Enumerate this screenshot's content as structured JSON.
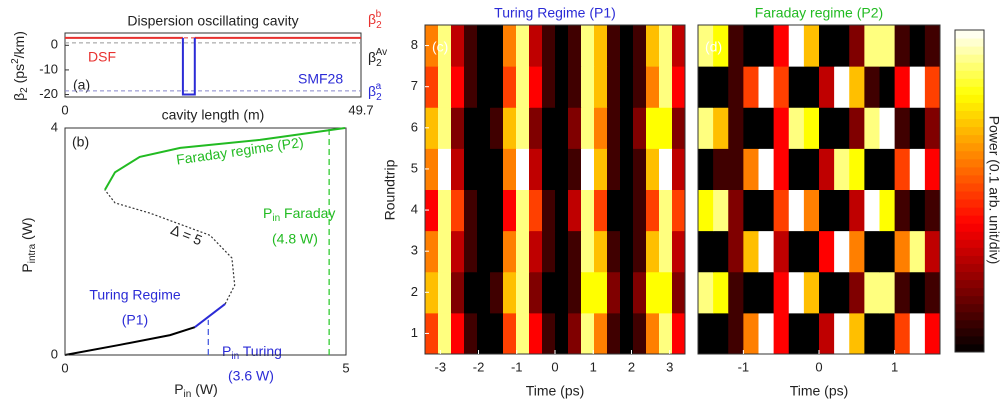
{
  "chart_data": [
    {
      "type": "line",
      "panel": "(a)",
      "title": "Dispersion oscillating cavity",
      "xlabel": "cavity length (m)",
      "ylabel": [
        "β",
        "2",
        " (ps",
        "2",
        "/km)"
      ],
      "xlim": [
        0,
        49.7
      ],
      "ylim": [
        -21,
        5
      ],
      "xticks": [
        0,
        49.7
      ],
      "yticks": [
        0,
        -10,
        -20
      ],
      "series": [
        {
          "name": "DSF",
          "color": "#e8312f",
          "x": [
            0,
            19.8,
            19.8,
            21.8,
            49.7
          ],
          "values": [
            3,
            3,
            null,
            3,
            3
          ]
        },
        {
          "name": "SMF28",
          "color": "#2b2bd6",
          "x": [
            19.8,
            19.8,
            21.8,
            21.8
          ],
          "values": [
            3,
            -20,
            -20,
            3
          ]
        }
      ],
      "hlines": [
        {
          "label": [
            "β",
            "2",
            "b"
          ],
          "value": 3,
          "color": "#e8312f"
        },
        {
          "label": [
            "β",
            "2",
            "Av"
          ],
          "value": 1,
          "color": "#999999"
        },
        {
          "label": [
            "β",
            "2",
            "a"
          ],
          "value": -18.5,
          "color": "#8888cc"
        }
      ]
    },
    {
      "type": "line",
      "panel": "(b)",
      "xlabel": [
        "P",
        "in",
        " (W)"
      ],
      "ylabel": [
        "P",
        "intra",
        " (W)"
      ],
      "xlim": [
        0,
        5
      ],
      "ylim": [
        0,
        4
      ],
      "xticks": [
        0,
        5
      ],
      "yticks": [
        0,
        4
      ],
      "series": [
        {
          "color": "#000000",
          "x": [
            0,
            0.98,
            1.87,
            2.31
          ],
          "values": [
            0,
            0.18,
            0.35,
            0.49
          ]
        },
        {
          "color": "#2b2bd6",
          "x": [
            2.31,
            2.85
          ],
          "values": [
            0.49,
            0.9
          ]
        },
        {
          "color": "#333333",
          "dash": true,
          "x": [
            2.85,
            3.02,
            2.97,
            2.58,
            1.51,
            0.89,
            0.71
          ],
          "values": [
            0.9,
            1.23,
            1.71,
            2.11,
            2.5,
            2.68,
            2.91
          ]
        },
        {
          "color": "#22bb22",
          "x": [
            0.71,
            0.89,
            1.33,
            2.05,
            3.47,
            4.98
          ],
          "values": [
            2.91,
            3.22,
            3.49,
            3.65,
            3.79,
            4.0
          ]
        }
      ],
      "vlines": [
        {
          "x": 2.55,
          "top": 0.62,
          "color": "#4a5ee0"
        },
        {
          "x": 4.7,
          "top": 4,
          "color": "#33cc33"
        }
      ],
      "annotations": [
        "Faraday regime (P2)",
        "Δ = 5",
        [
          "P",
          "in",
          " Faraday"
        ],
        "(4.8 W)",
        "Turing Regime",
        "(P1)",
        [
          "P",
          "in",
          " Turing"
        ],
        "(3.6 W)"
      ]
    },
    {
      "type": "heatmap",
      "panel": "(c)",
      "title": "Turing Regime (P1)",
      "xlabel": "Time (ps)",
      "ylabel": "Roundtrip",
      "xlim": [
        -3.4,
        3.4
      ],
      "ylim": [
        0.5,
        8.5
      ],
      "xticks": [
        -3,
        -2,
        -1,
        0,
        1,
        2,
        3
      ],
      "yticks": [
        1,
        2,
        3,
        4,
        5,
        6,
        7,
        8
      ],
      "zlim": [
        0,
        10
      ],
      "colormap": "hot",
      "values": [
        [
          5,
          9,
          4,
          1,
          0,
          0,
          5,
          9,
          4,
          1,
          0,
          2,
          9,
          6,
          1,
          0,
          1,
          6,
          9,
          4
        ],
        [
          7,
          9,
          2,
          0,
          0,
          1,
          7,
          9,
          2,
          0,
          0,
          1,
          8,
          8,
          2,
          0,
          2,
          8,
          8,
          2
        ],
        [
          6,
          9,
          3,
          1,
          0,
          0,
          6,
          9,
          3,
          1,
          0,
          1,
          9,
          7,
          1,
          0,
          1,
          7,
          9,
          3
        ],
        [
          4,
          9,
          5,
          1,
          0,
          0,
          4,
          9,
          5,
          1,
          0,
          3,
          9,
          5,
          0,
          0,
          1,
          5,
          9,
          5
        ],
        [
          6,
          10,
          3,
          0,
          0,
          0,
          6,
          10,
          3,
          0,
          0,
          1,
          10,
          7,
          1,
          0,
          1,
          7,
          10,
          3
        ],
        [
          7,
          9,
          2,
          0,
          0,
          1,
          7,
          9,
          2,
          0,
          0,
          2,
          9,
          6,
          1,
          0,
          2,
          8,
          8,
          2
        ],
        [
          5,
          9,
          4,
          1,
          0,
          0,
          5,
          9,
          4,
          1,
          0,
          1,
          9,
          7,
          1,
          0,
          1,
          6,
          9,
          4
        ],
        [
          6,
          9,
          3,
          1,
          0,
          0,
          6,
          9,
          3,
          1,
          0,
          1,
          9,
          7,
          1,
          0,
          1,
          7,
          9,
          3
        ]
      ]
    },
    {
      "type": "heatmap",
      "panel": "(d)",
      "title": "Faraday regime (P2)",
      "xlabel": "Time (ps)",
      "colorbar_label": "Power (0.1 arb. unit/div)",
      "xlim": [
        -1.6,
        1.6
      ],
      "ylim": [
        0.5,
        8.5
      ],
      "xticks": [
        -1,
        0,
        1
      ],
      "yticks": [
        1,
        2,
        3,
        4,
        5,
        6,
        7,
        8
      ],
      "zlim": [
        0,
        10
      ],
      "colormap": "hot",
      "values": [
        [
          0,
          0,
          1,
          6,
          10,
          4,
          0,
          0,
          3,
          10,
          7,
          0,
          0,
          5,
          10,
          4
        ],
        [
          9,
          8,
          1,
          0,
          0,
          4,
          10,
          7,
          0,
          0,
          2,
          9,
          9,
          1,
          0,
          1
        ],
        [
          0,
          0,
          2,
          7,
          10,
          3,
          0,
          0,
          4,
          10,
          6,
          0,
          0,
          6,
          9,
          3
        ],
        [
          8,
          9,
          2,
          0,
          0,
          5,
          10,
          6,
          0,
          0,
          3,
          10,
          8,
          1,
          0,
          1
        ],
        [
          0,
          1,
          1,
          6,
          10,
          4,
          0,
          0,
          3,
          9,
          8,
          0,
          0,
          5,
          10,
          4
        ],
        [
          9,
          7,
          1,
          0,
          0,
          4,
          9,
          8,
          0,
          0,
          2,
          9,
          10,
          1,
          0,
          2
        ],
        [
          0,
          0,
          1,
          5,
          10,
          5,
          0,
          0,
          3,
          10,
          7,
          1,
          0,
          4,
          10,
          5
        ],
        [
          9,
          8,
          1,
          0,
          0,
          4,
          10,
          7,
          0,
          0,
          2,
          9,
          9,
          1,
          0,
          1
        ]
      ]
    }
  ]
}
